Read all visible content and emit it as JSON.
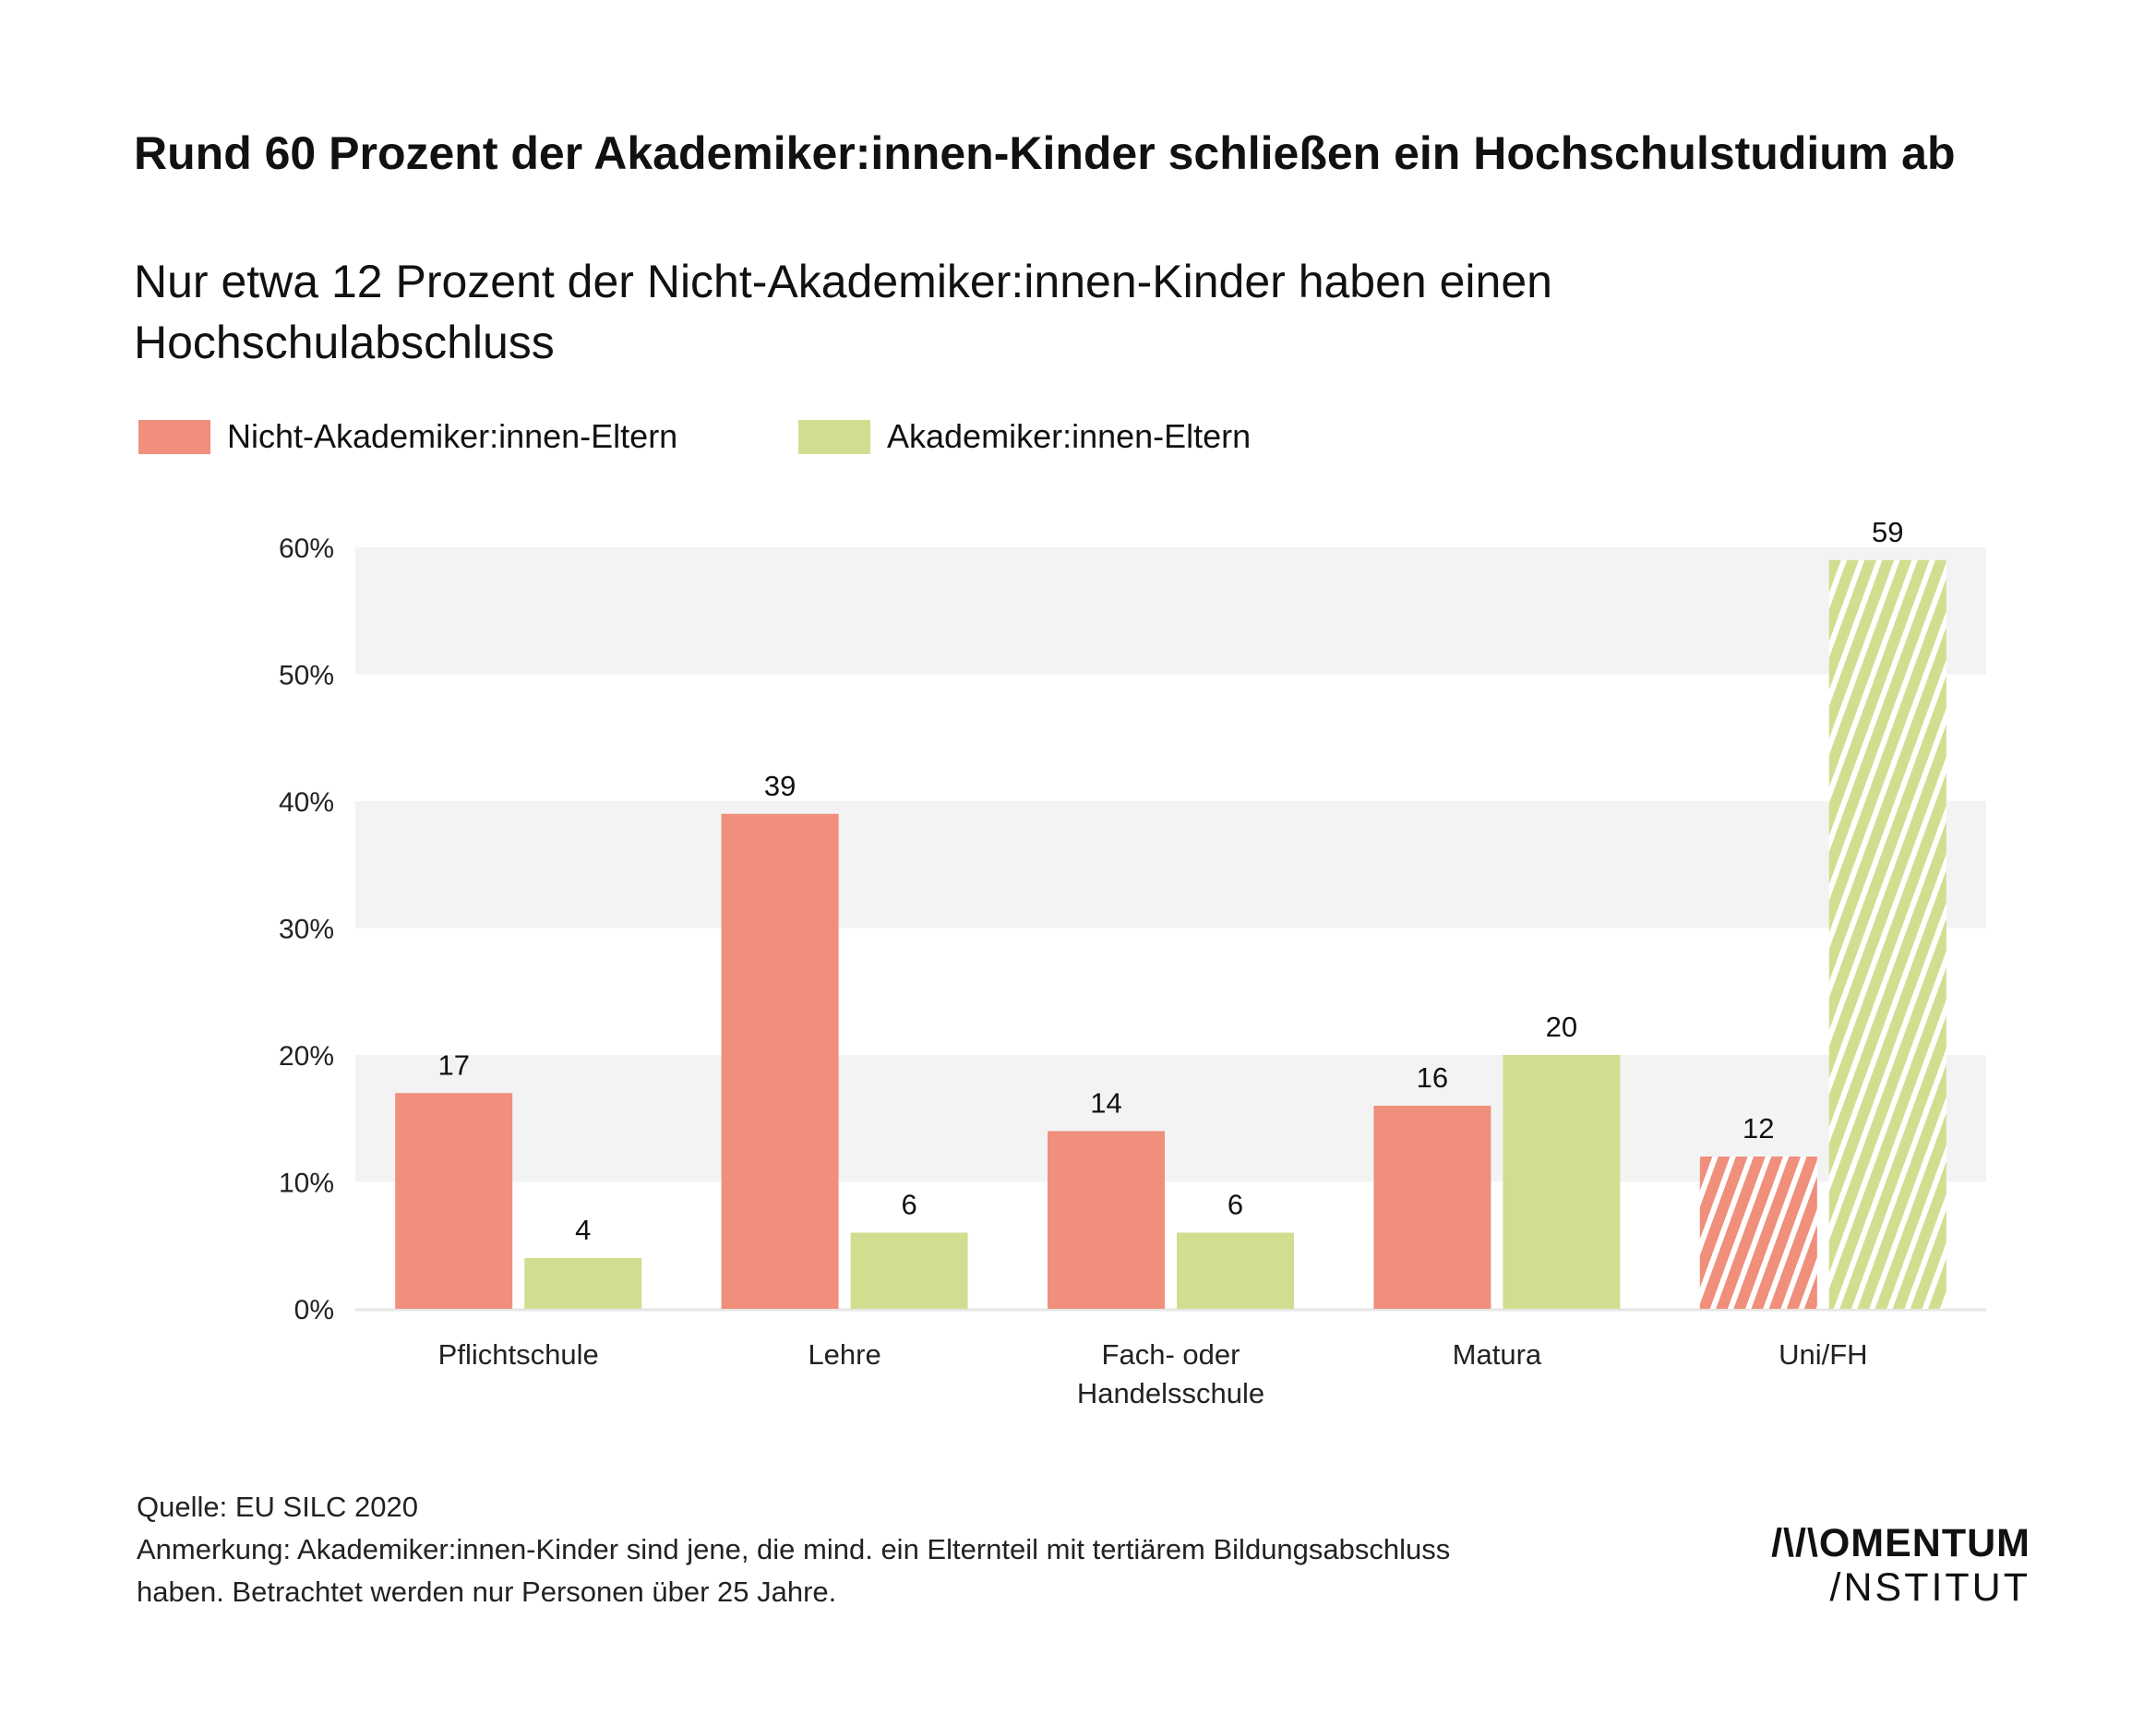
{
  "title": "Rund 60 Prozent der Akademiker:innen-Kinder schließen ein Hochschulstudium ab",
  "subtitle": "Nur etwa 12 Prozent der Nicht-Akademiker:innen-Kinder haben einen Hochschulabschluss",
  "legend": [
    {
      "label": "Nicht-Akademiker:innen-Eltern",
      "color": "#EF8F7C"
    },
    {
      "label": "Akademiker:innen-Eltern",
      "color": "#D2DE8F"
    }
  ],
  "chart_data": {
    "type": "bar",
    "categories": [
      [
        "Pflichtschule"
      ],
      [
        "Lehre"
      ],
      [
        "Fach- oder",
        "Handelsschule"
      ],
      [
        "Matura"
      ],
      [
        "Uni/FH"
      ]
    ],
    "series": [
      {
        "name": "Nicht-Akademiker:innen-Eltern",
        "values": [
          17,
          39,
          14,
          16,
          12
        ],
        "color": "#EF8F7C"
      },
      {
        "name": "Akademiker:innen-Eltern",
        "values": [
          4,
          6,
          6,
          20,
          59
        ],
        "color": "#D2DE8F"
      }
    ],
    "hatched_categories": [
      "Uni/FH"
    ],
    "ylim": [
      0,
      60
    ],
    "yticks": [
      0,
      10,
      20,
      30,
      40,
      50,
      60
    ],
    "ytick_labels": [
      "0%",
      "10%",
      "20%",
      "30%",
      "40%",
      "50%",
      "60%"
    ],
    "grid": "alternating shaded horizontal bands",
    "band_color": "#F3F3F3",
    "legend_position": "top-left"
  },
  "footer": {
    "source": "Quelle: EU SILC 2020",
    "note": "Anmerkung: Akademiker:innen-Kinder sind jene, die mind. ein Elternteil mit tertiärem Bildungsabschluss haben. Betrachtet werden nur Personen über 25 Jahre."
  },
  "logo": {
    "line1": "/\\/\\OMENTUM",
    "line2": "/NSTITUT"
  }
}
